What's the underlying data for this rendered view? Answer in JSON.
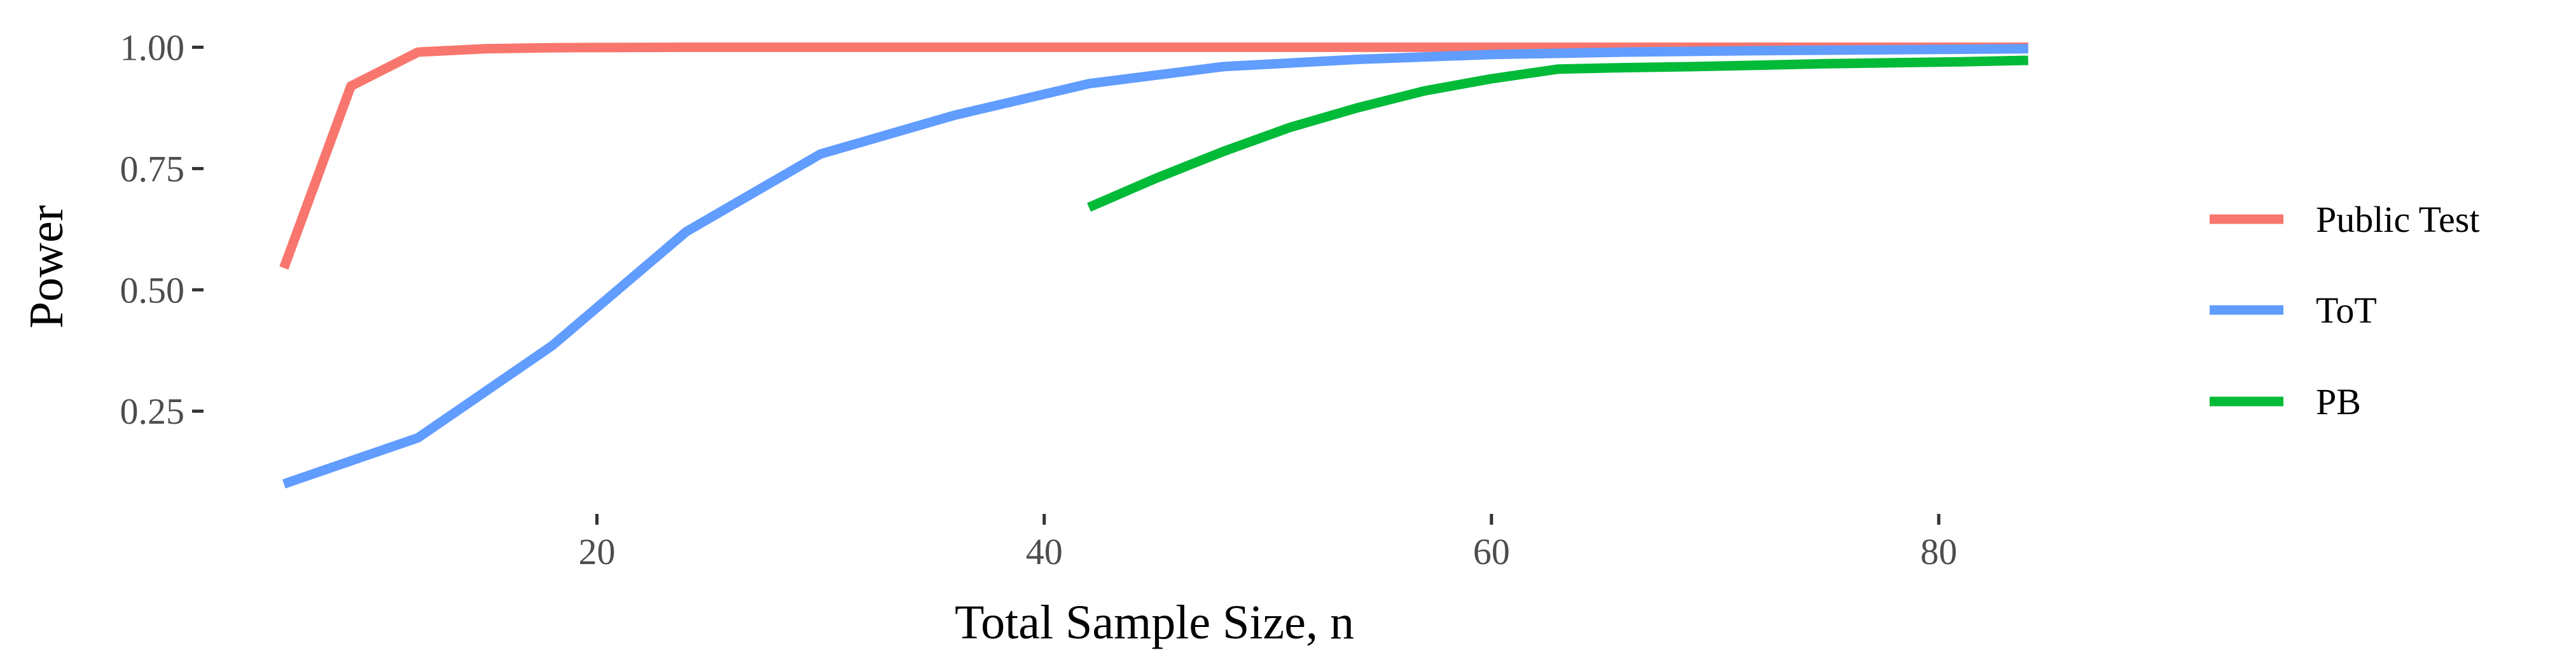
{
  "chart_data": {
    "type": "line",
    "title": "",
    "xlabel": "Total Sample Size, n",
    "ylabel": "Power",
    "xlim": [
      4.4,
      85.6
    ],
    "ylim": [
      0.05,
      1.045
    ],
    "x_ticks": [
      20,
      40,
      60,
      80
    ],
    "y_ticks": [
      0.25,
      0.5,
      0.75,
      1.0
    ],
    "x_tick_labels": [
      "20",
      "40",
      "60",
      "80"
    ],
    "y_tick_labels": [
      "0.25",
      "0.50",
      "0.75",
      "1.00"
    ],
    "grid": false,
    "legend_position": "right",
    "series": [
      {
        "name": "Public Test",
        "color": "#F8766D",
        "x": [
          6,
          9,
          12,
          15,
          18,
          24,
          30,
          36,
          42,
          48,
          54,
          60,
          66,
          72,
          78,
          84
        ],
        "y": [
          0.545,
          0.92,
          0.99,
          0.997,
          0.999,
          1.0,
          1.0,
          1.0,
          1.0,
          1.0,
          1.0,
          1.0,
          1.0,
          1.0,
          1.0,
          1.0
        ]
      },
      {
        "name": "ToT",
        "color": "#619CFF",
        "x": [
          6,
          12,
          18,
          24,
          30,
          36,
          42,
          48,
          54,
          60,
          66,
          72,
          78,
          84
        ],
        "y": [
          0.1,
          0.195,
          0.385,
          0.62,
          0.78,
          0.86,
          0.925,
          0.96,
          0.975,
          0.985,
          0.99,
          0.993,
          0.995,
          0.997
        ]
      },
      {
        "name": "PB",
        "color": "#00BA38",
        "x": [
          42,
          45,
          48,
          51,
          54,
          57,
          60,
          63,
          66,
          69,
          72,
          75,
          78,
          81,
          84
        ],
        "y": [
          0.67,
          0.73,
          0.785,
          0.835,
          0.875,
          0.91,
          0.935,
          0.955,
          0.958,
          0.96,
          0.963,
          0.966,
          0.968,
          0.97,
          0.973
        ]
      }
    ]
  }
}
